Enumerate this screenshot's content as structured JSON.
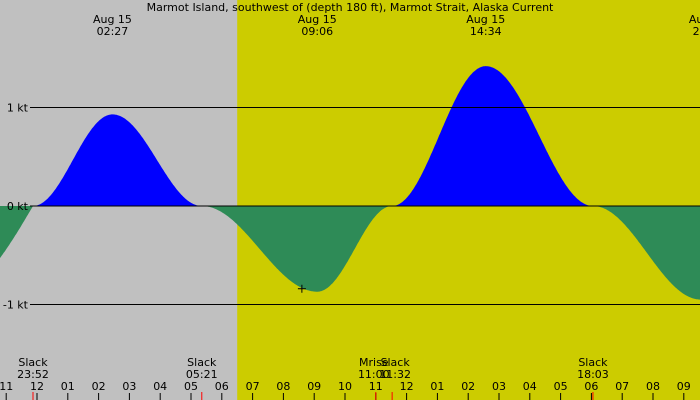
{
  "chart_data": {
    "type": "area",
    "title": "Marmot Island, southwest of (depth 180 ft), Marmot Strait, Alaska Current",
    "unit_note": "kt",
    "x_unit": "hours (Aug 15 local time)",
    "x_range": [
      -1.4,
      21.55
    ],
    "ylim": [
      -1.25,
      1.6
    ],
    "y_ticks": [
      {
        "value": 1,
        "label": "1 kt"
      },
      {
        "value": 0,
        "label": "0 kt"
      },
      {
        "value": -1,
        "label": "-1 kt"
      }
    ],
    "night_shading": {
      "until": 6.5
    },
    "current_series": {
      "name": "current",
      "flood_color": "#0000ff",
      "ebb_color": "#2e8b57",
      "points": [
        {
          "t": -0.13,
          "v": 0
        },
        {
          "t": 2.45,
          "v": 0.93
        },
        {
          "t": 5.35,
          "v": 0
        },
        {
          "t": 9.1,
          "v": -0.87
        },
        {
          "t": 11.53,
          "v": 0
        },
        {
          "t": 14.57,
          "v": 1.42
        },
        {
          "t": 18.05,
          "v": 0
        },
        {
          "t": 21.55,
          "v": -0.95
        }
      ]
    },
    "peak_labels": [
      {
        "t": 2.45,
        "date": "Aug 15",
        "time": "02:27"
      },
      {
        "t": 9.1,
        "date": "Aug 15",
        "time": "09:06"
      },
      {
        "t": 14.57,
        "date": "Aug 15",
        "time": "14:34"
      },
      {
        "t": 21.4,
        "date": "Au",
        "time": "2"
      }
    ],
    "event_labels": [
      {
        "t": -0.13,
        "label": "Slack",
        "time": "23:52"
      },
      {
        "t": 5.35,
        "label": "Slack",
        "time": "05:21"
      },
      {
        "t": 11.0,
        "label": "Mrise",
        "time": "11:00"
      },
      {
        "t": 11.53,
        "label": "Slack",
        "time": "11:32"
      },
      {
        "t": 18.05,
        "label": "Slack",
        "time": "18:03"
      }
    ],
    "event_tick_times": [
      -0.13,
      5.35,
      11.0,
      11.53,
      18.05
    ],
    "marker": {
      "t": 8.6,
      "v": -0.84
    },
    "hour_ticks": [
      {
        "t": -1,
        "label": "11"
      },
      {
        "t": 0,
        "label": "12"
      },
      {
        "t": 1,
        "label": "01"
      },
      {
        "t": 2,
        "label": "02"
      },
      {
        "t": 3,
        "label": "03"
      },
      {
        "t": 4,
        "label": "04"
      },
      {
        "t": 5,
        "label": "05"
      },
      {
        "t": 6,
        "label": "06"
      },
      {
        "t": 7,
        "label": "07"
      },
      {
        "t": 8,
        "label": "08"
      },
      {
        "t": 9,
        "label": "09"
      },
      {
        "t": 10,
        "label": "10"
      },
      {
        "t": 11,
        "label": "11"
      },
      {
        "t": 12,
        "label": "12"
      },
      {
        "t": 13,
        "label": "01"
      },
      {
        "t": 14,
        "label": "02"
      },
      {
        "t": 15,
        "label": "03"
      },
      {
        "t": 16,
        "label": "04"
      },
      {
        "t": 17,
        "label": "05"
      },
      {
        "t": 18,
        "label": "06"
      },
      {
        "t": 19,
        "label": "07"
      },
      {
        "t": 20,
        "label": "08"
      },
      {
        "t": 21,
        "label": "09"
      }
    ],
    "colors": {
      "night": "#c0c0c0",
      "day": "#cccc00",
      "flood": "#0000ff",
      "ebb": "#2e8b57",
      "event_tick": "#ff0000",
      "gridline": "#000000"
    }
  }
}
